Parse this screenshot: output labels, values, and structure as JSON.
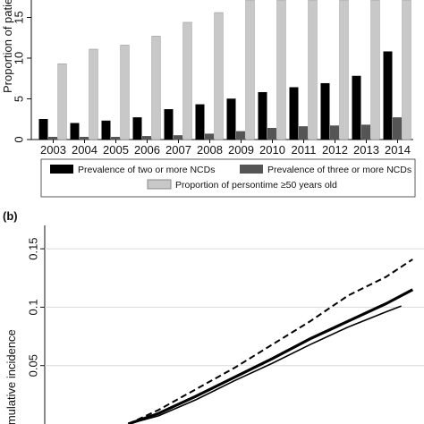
{
  "chart_data": [
    {
      "type": "bar",
      "title": "",
      "ylabel": "Proportion of patier",
      "xlabel": "",
      "ylim": [
        0,
        17.5
      ],
      "yticks": [
        0,
        5,
        10,
        15
      ],
      "categories": [
        "2003",
        "2004",
        "2005",
        "2006",
        "2007",
        "2008",
        "2009",
        "2010",
        "2011",
        "2012",
        "2013",
        "2014"
      ],
      "series": [
        {
          "name": "Prevalence of two or more NCDs",
          "color": "#000000",
          "values": [
            2.5,
            2.0,
            2.3,
            2.7,
            3.7,
            4.3,
            5.0,
            5.8,
            6.4,
            6.9,
            7.8,
            10.8
          ]
        },
        {
          "name": "Prevalence of three or more NCDs",
          "color": "#555555",
          "values": [
            0.3,
            0.3,
            0.3,
            0.4,
            0.5,
            0.7,
            1.0,
            1.4,
            1.6,
            1.7,
            1.8,
            2.7
          ]
        },
        {
          "name": "Proportion of persontime ≥50 years old",
          "color": "#c8c8c8",
          "values": [
            9.3,
            11.1,
            11.6,
            12.7,
            14.4,
            15.6,
            17.5,
            17.5,
            17.5,
            17.5,
            17.5,
            17.5
          ]
        }
      ],
      "legend_position": "bottom",
      "grid": false
    },
    {
      "type": "line",
      "panel_label": "(b)",
      "title": "",
      "ylabel": "Cumulative incidence",
      "xlabel": "",
      "ylim": [
        0,
        0.17
      ],
      "yticks": [
        0.05,
        0.1,
        0.15
      ],
      "ytick_labels": [
        "0.05",
        "0.1",
        "0.15"
      ],
      "xlim": [
        0,
        1
      ],
      "grid": true,
      "series": [
        {
          "style": "dashed",
          "color": "#000000",
          "x": [
            0.22,
            0.3,
            0.4,
            0.5,
            0.6,
            0.7,
            0.8,
            0.9,
            0.97
          ],
          "y": [
            0.0,
            0.012,
            0.03,
            0.048,
            0.068,
            0.088,
            0.11,
            0.126,
            0.141
          ]
        },
        {
          "style": "thick",
          "color": "#000000",
          "x": [
            0.22,
            0.3,
            0.4,
            0.5,
            0.6,
            0.7,
            0.8,
            0.9,
            0.97
          ],
          "y": [
            0.0,
            0.009,
            0.024,
            0.04,
            0.056,
            0.073,
            0.088,
            0.103,
            0.115
          ]
        },
        {
          "style": "thin",
          "color": "#000000",
          "x": [
            0.22,
            0.3,
            0.4,
            0.5,
            0.6,
            0.7,
            0.8,
            0.9,
            0.94
          ],
          "y": [
            0.0,
            0.007,
            0.021,
            0.037,
            0.052,
            0.068,
            0.083,
            0.096,
            0.101
          ]
        }
      ]
    }
  ]
}
